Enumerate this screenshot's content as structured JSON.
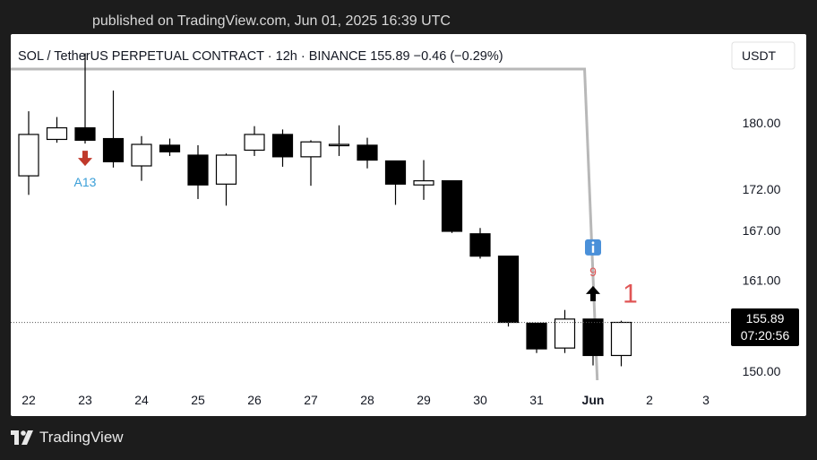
{
  "header": {
    "published": "published on TradingView.com, Jun 01, 2025 16:39 UTC"
  },
  "footer": {
    "brand": "TradingView"
  },
  "colors": {
    "bear": "#000000",
    "bull": "#ffffff",
    "outline": "#000000",
    "overlay_line": "#b8b8b8",
    "arrow_down": "#c0392b",
    "arrow_up": "#000000",
    "label_blue": "#3a9fd8",
    "label_red": "#e05555",
    "info_icon": "#4a90d9"
  },
  "chart_data": {
    "type": "candlestick",
    "title": "SOL / TetherUS PERPETUAL CONTRACT · 12h · BINANCE",
    "last": "155.89",
    "change": "−0.46 (−0.29%)",
    "currency": "USDT",
    "price_label": "155.89",
    "countdown": "07:20:56",
    "yticks": [
      "180.00",
      "172.00",
      "167.00",
      "161.00",
      "150.00"
    ],
    "ytick_values": [
      180,
      172,
      167,
      161,
      150
    ],
    "xticks": [
      "22",
      "23",
      "24",
      "25",
      "26",
      "27",
      "28",
      "29",
      "30",
      "31",
      "Jun",
      "2",
      "3"
    ],
    "x_tick_index": [
      0,
      2,
      4,
      6,
      8,
      10,
      12,
      14,
      16,
      18,
      20,
      22,
      24
    ],
    "candles": [
      {
        "o": 173.6,
        "h": 181.4,
        "l": 171.3,
        "c": 178.6
      },
      {
        "o": 178.0,
        "h": 180.7,
        "l": 177.6,
        "c": 179.4
      },
      {
        "o": 179.4,
        "h": 188.4,
        "l": 177.5,
        "c": 177.9
      },
      {
        "o": 178.1,
        "h": 183.9,
        "l": 174.6,
        "c": 175.3
      },
      {
        "o": 174.8,
        "h": 178.4,
        "l": 173.0,
        "c": 177.4
      },
      {
        "o": 177.3,
        "h": 178.1,
        "l": 176.0,
        "c": 176.5
      },
      {
        "o": 176.1,
        "h": 177.3,
        "l": 170.8,
        "c": 172.5
      },
      {
        "o": 172.6,
        "h": 176.3,
        "l": 170.0,
        "c": 176.1
      },
      {
        "o": 176.7,
        "h": 179.6,
        "l": 176.0,
        "c": 178.6
      },
      {
        "o": 178.6,
        "h": 179.2,
        "l": 174.7,
        "c": 175.9
      },
      {
        "o": 175.9,
        "h": 177.9,
        "l": 172.4,
        "c": 177.7
      },
      {
        "o": 177.4,
        "h": 179.7,
        "l": 176.0,
        "c": 177.4
      },
      {
        "o": 177.3,
        "h": 178.2,
        "l": 174.5,
        "c": 175.5
      },
      {
        "o": 175.4,
        "h": 175.4,
        "l": 170.1,
        "c": 172.6
      },
      {
        "o": 172.5,
        "h": 175.5,
        "l": 170.7,
        "c": 173.0
      },
      {
        "o": 173.0,
        "h": 173.0,
        "l": 166.7,
        "c": 166.9
      },
      {
        "o": 166.6,
        "h": 167.3,
        "l": 163.6,
        "c": 163.9
      },
      {
        "o": 163.9,
        "h": 163.9,
        "l": 155.4,
        "c": 155.9
      },
      {
        "o": 155.8,
        "h": 155.8,
        "l": 152.2,
        "c": 152.7
      },
      {
        "o": 152.8,
        "h": 157.4,
        "l": 152.2,
        "c": 156.3
      },
      {
        "o": 156.3,
        "h": 156.3,
        "l": 150.7,
        "c": 151.9
      },
      {
        "o": 151.9,
        "h": 156.1,
        "l": 150.6,
        "c": 155.9
      }
    ],
    "markers": [
      {
        "type": "arrow-down",
        "candle": 2,
        "label": "A13"
      },
      {
        "type": "arrow-up",
        "candle": 20,
        "label": "9"
      },
      {
        "type": "count",
        "candle": 21,
        "label": "1"
      }
    ],
    "overlay_line": {
      "flat_value": 186.5,
      "end_value": 150.0,
      "start_candle": -0.5,
      "bend_candle": 19.7,
      "end_candle": 20.15
    }
  }
}
